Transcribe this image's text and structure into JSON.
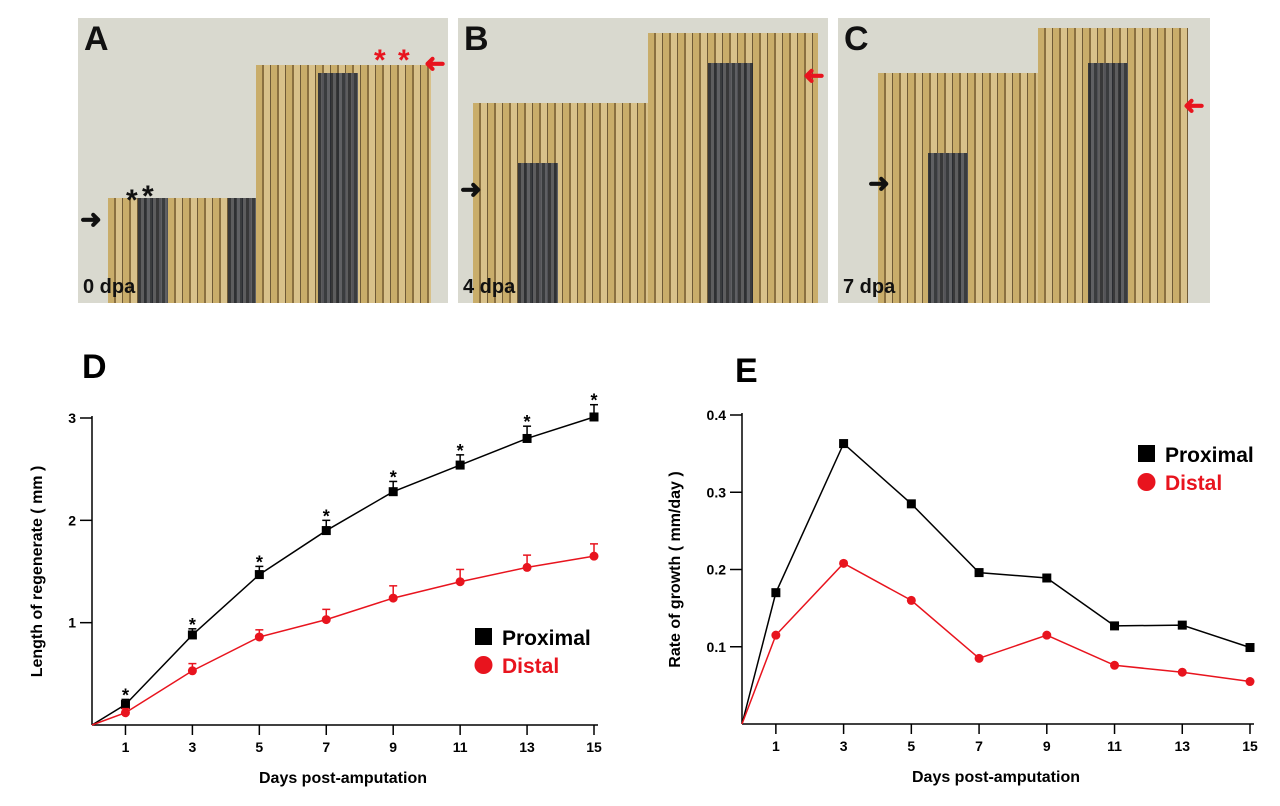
{
  "panels": [
    {
      "letter": "A",
      "label": "0 dpa"
    },
    {
      "letter": "B",
      "label": "4 dpa"
    },
    {
      "letter": "C",
      "label": "7 dpa"
    }
  ],
  "annotations": {
    "star": "*",
    "arrow": "➜"
  },
  "colors": {
    "proximal": "#000000",
    "distal": "#e8141e"
  },
  "chart_data": [
    {
      "panel": "D",
      "type": "line",
      "xlabel": "Days post-amputation",
      "ylabel": "Length of regenerate ( mm )",
      "x": [
        0,
        1,
        3,
        5,
        7,
        9,
        11,
        13,
        15
      ],
      "xticks": [
        "1",
        "3",
        "5",
        "7",
        "9",
        "11",
        "13",
        "15"
      ],
      "ylim": [
        0,
        3.2
      ],
      "yticks": [
        "1",
        "2",
        "3"
      ],
      "series": [
        {
          "name": "Proximal",
          "marker": "square",
          "values": [
            0,
            0.2,
            0.88,
            1.47,
            1.9,
            2.28,
            2.54,
            2.8,
            3.01
          ],
          "errors": [
            0,
            0.05,
            0.06,
            0.08,
            0.1,
            0.1,
            0.1,
            0.12,
            0.12
          ],
          "significance": [
            "",
            "*",
            "*",
            "*",
            "*",
            "*",
            "*",
            "*",
            "*"
          ]
        },
        {
          "name": "Distal",
          "marker": "circle",
          "values": [
            0,
            0.12,
            0.53,
            0.86,
            1.03,
            1.24,
            1.4,
            1.54,
            1.65
          ],
          "errors": [
            0,
            0.04,
            0.07,
            0.07,
            0.1,
            0.12,
            0.12,
            0.12,
            0.12
          ]
        }
      ],
      "legend": "bottom-right"
    },
    {
      "panel": "E",
      "type": "line",
      "xlabel": "Days post-amputation",
      "ylabel": "Rate of growth ( mm/day )",
      "x": [
        0,
        1,
        3,
        5,
        7,
        9,
        11,
        13,
        15
      ],
      "xticks": [
        "1",
        "3",
        "5",
        "7",
        "9",
        "11",
        "13",
        "15"
      ],
      "ylim": [
        0,
        0.4
      ],
      "yticks": [
        "0.1",
        "0.2",
        "0.3",
        "0.4"
      ],
      "series": [
        {
          "name": "Proximal",
          "marker": "square",
          "values": [
            0,
            0.17,
            0.363,
            0.285,
            0.196,
            0.189,
            0.127,
            0.128,
            0.099
          ]
        },
        {
          "name": "Distal",
          "marker": "circle",
          "values": [
            0,
            0.115,
            0.208,
            0.16,
            0.085,
            0.115,
            0.076,
            0.067,
            0.055
          ]
        }
      ],
      "legend": "top-right"
    }
  ]
}
